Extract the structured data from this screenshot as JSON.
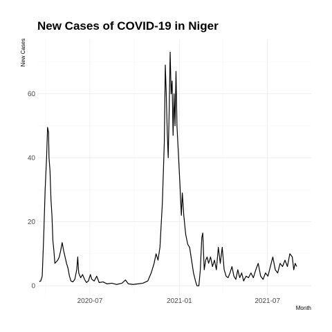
{
  "chart_data": {
    "type": "line",
    "title": "New Cases of COVID-19 in Niger",
    "xlabel": "Month",
    "ylabel": "New Cases",
    "grid": true,
    "legend": "none",
    "xlim": [
      "2020-03-15",
      "2021-09-29"
    ],
    "ylim": [
      -3,
      77
    ],
    "x_ticks": [
      {
        "date": "2020-07-01",
        "label": "2020-07"
      },
      {
        "date": "2021-01-01",
        "label": "2021-01"
      },
      {
        "date": "2021-07-01",
        "label": "2021-07"
      }
    ],
    "y_ticks": [
      0,
      20,
      40,
      60
    ],
    "series": [
      {
        "points": [
          [
            "2020-03-19",
            1.3
          ],
          [
            "2020-03-22",
            1.5
          ],
          [
            "2020-03-25",
            3
          ],
          [
            "2020-03-28",
            15
          ],
          [
            "2020-03-31",
            30
          ],
          [
            "2020-04-03",
            40
          ],
          [
            "2020-04-05",
            49.5
          ],
          [
            "2020-04-07",
            48
          ],
          [
            "2020-04-08",
            40
          ],
          [
            "2020-04-10",
            36
          ],
          [
            "2020-04-12",
            27
          ],
          [
            "2020-04-14",
            22
          ],
          [
            "2020-04-16",
            14
          ],
          [
            "2020-04-18",
            11
          ],
          [
            "2020-04-20",
            7
          ],
          [
            "2020-04-23",
            7.5
          ],
          [
            "2020-04-26",
            8
          ],
          [
            "2020-04-29",
            9
          ],
          [
            "2020-05-02",
            11
          ],
          [
            "2020-05-05",
            13.5
          ],
          [
            "2020-05-08",
            11
          ],
          [
            "2020-05-11",
            9
          ],
          [
            "2020-05-14",
            7
          ],
          [
            "2020-05-17",
            5.5
          ],
          [
            "2020-05-20",
            3
          ],
          [
            "2020-05-23",
            1.5
          ],
          [
            "2020-05-27",
            1.2
          ],
          [
            "2020-05-31",
            2
          ],
          [
            "2020-06-04",
            5
          ],
          [
            "2020-06-06",
            9
          ],
          [
            "2020-06-08",
            4
          ],
          [
            "2020-06-12",
            2.5
          ],
          [
            "2020-06-16",
            3.5
          ],
          [
            "2020-06-20",
            2
          ],
          [
            "2020-06-24",
            1
          ],
          [
            "2020-06-28",
            1.5
          ],
          [
            "2020-07-02",
            3.5
          ],
          [
            "2020-07-05",
            2
          ],
          [
            "2020-07-10",
            1.5
          ],
          [
            "2020-07-15",
            3
          ],
          [
            "2020-07-20",
            1
          ],
          [
            "2020-07-28",
            1.2
          ],
          [
            "2020-08-05",
            0.6
          ],
          [
            "2020-08-15",
            0.8
          ],
          [
            "2020-08-25",
            0.4
          ],
          [
            "2020-09-05",
            0.8
          ],
          [
            "2020-09-12",
            1.8
          ],
          [
            "2020-09-18",
            0.6
          ],
          [
            "2020-09-28",
            0.4
          ],
          [
            "2020-10-08",
            0.6
          ],
          [
            "2020-10-18",
            0.8
          ],
          [
            "2020-10-28",
            1.5
          ],
          [
            "2020-11-04",
            4
          ],
          [
            "2020-11-10",
            7
          ],
          [
            "2020-11-14",
            10
          ],
          [
            "2020-11-18",
            8
          ],
          [
            "2020-11-22",
            12
          ],
          [
            "2020-11-27",
            26
          ],
          [
            "2020-12-01",
            45
          ],
          [
            "2020-12-03",
            69
          ],
          [
            "2020-12-05",
            60
          ],
          [
            "2020-12-07",
            48
          ],
          [
            "2020-12-09",
            40
          ],
          [
            "2020-12-11",
            55
          ],
          [
            "2020-12-13",
            73
          ],
          [
            "2020-12-15",
            60
          ],
          [
            "2020-12-17",
            64
          ],
          [
            "2020-12-19",
            47
          ],
          [
            "2020-12-21",
            60
          ],
          [
            "2020-12-23",
            50
          ],
          [
            "2020-12-25",
            67
          ],
          [
            "2020-12-27",
            50
          ],
          [
            "2020-12-29",
            44
          ],
          [
            "2021-01-02",
            32
          ],
          [
            "2021-01-05",
            22
          ],
          [
            "2021-01-07",
            29
          ],
          [
            "2021-01-10",
            22
          ],
          [
            "2021-01-14",
            16
          ],
          [
            "2021-01-18",
            13
          ],
          [
            "2021-01-22",
            12
          ],
          [
            "2021-01-26",
            8
          ],
          [
            "2021-01-30",
            4
          ],
          [
            "2021-02-03",
            1.5
          ],
          [
            "2021-02-06",
            0
          ],
          [
            "2021-02-10",
            0
          ],
          [
            "2021-02-13",
            5
          ],
          [
            "2021-02-16",
            15
          ],
          [
            "2021-02-18",
            16.5
          ],
          [
            "2021-02-21",
            5
          ],
          [
            "2021-02-24",
            8
          ],
          [
            "2021-02-27",
            9
          ],
          [
            "2021-03-02",
            7
          ],
          [
            "2021-03-06",
            9
          ],
          [
            "2021-03-10",
            6
          ],
          [
            "2021-03-14",
            8
          ],
          [
            "2021-03-18",
            5
          ],
          [
            "2021-03-22",
            12
          ],
          [
            "2021-03-26",
            7
          ],
          [
            "2021-03-30",
            12
          ],
          [
            "2021-04-03",
            5
          ],
          [
            "2021-04-07",
            3
          ],
          [
            "2021-04-11",
            2.5
          ],
          [
            "2021-04-15",
            4
          ],
          [
            "2021-04-19",
            6
          ],
          [
            "2021-04-23",
            3
          ],
          [
            "2021-04-27",
            2
          ],
          [
            "2021-05-01",
            5
          ],
          [
            "2021-05-05",
            2.5
          ],
          [
            "2021-05-09",
            4
          ],
          [
            "2021-05-13",
            1.5
          ],
          [
            "2021-05-18",
            3
          ],
          [
            "2021-05-23",
            2.5
          ],
          [
            "2021-05-28",
            4
          ],
          [
            "2021-06-02",
            2.5
          ],
          [
            "2021-06-07",
            5
          ],
          [
            "2021-06-12",
            7
          ],
          [
            "2021-06-17",
            3
          ],
          [
            "2021-06-22",
            2
          ],
          [
            "2021-06-27",
            4
          ],
          [
            "2021-07-02",
            3
          ],
          [
            "2021-07-07",
            6
          ],
          [
            "2021-07-12",
            9
          ],
          [
            "2021-07-17",
            5
          ],
          [
            "2021-07-22",
            4
          ],
          [
            "2021-07-27",
            7
          ],
          [
            "2021-08-01",
            6
          ],
          [
            "2021-08-06",
            8
          ],
          [
            "2021-08-11",
            6
          ],
          [
            "2021-08-16",
            10
          ],
          [
            "2021-08-21",
            9
          ],
          [
            "2021-08-24",
            5
          ],
          [
            "2021-08-27",
            7
          ],
          [
            "2021-08-30",
            6
          ]
        ]
      }
    ]
  }
}
